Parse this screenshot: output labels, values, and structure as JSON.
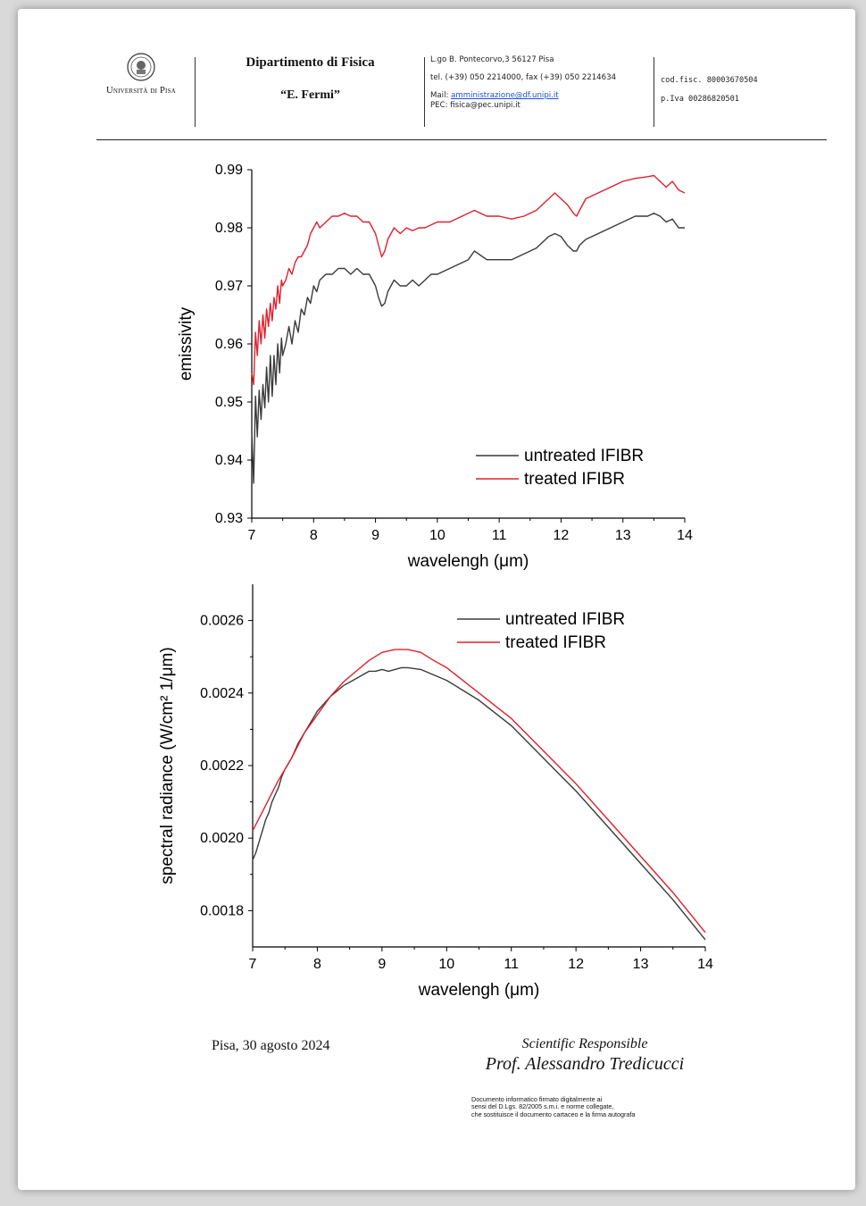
{
  "header": {
    "university_name": "Università di Pisa",
    "department_line1": "Dipartimento di Fisica",
    "department_line2": "“E. Fermi”",
    "address": "L.go B. Pontecorvo,3 56127 Pisa",
    "phone": "tel. (+39) 050 2214000, fax (+39) 050 2214634",
    "mail_label": "Mail:",
    "mail_link": "amministrazione@df.unipi.it",
    "pec": "PEC: fisica@pec.unipi.it",
    "cod_fisc": "cod.fisc. 80003670504",
    "p_iva": "p.Iva 00286820501"
  },
  "chart_data": [
    {
      "type": "line",
      "title": "",
      "xlabel": "wavelengh (μm)",
      "ylabel": "emissivity",
      "xlim": [
        7,
        14
      ],
      "ylim": [
        0.93,
        0.99
      ],
      "xticks": [
        "7",
        "8",
        "9",
        "10",
        "11",
        "12",
        "13",
        "14"
      ],
      "yticks": [
        "0.93",
        "0.94",
        "0.95",
        "0.96",
        "0.97",
        "0.98",
        "0.99"
      ],
      "legend_position": "lower-right",
      "series": [
        {
          "name": "untreated IFIBR",
          "color": "#3a3a3a",
          "x": [
            7.0,
            7.03,
            7.06,
            7.09,
            7.12,
            7.15,
            7.18,
            7.21,
            7.24,
            7.27,
            7.3,
            7.33,
            7.36,
            7.39,
            7.42,
            7.45,
            7.48,
            7.5,
            7.55,
            7.6,
            7.65,
            7.7,
            7.75,
            7.8,
            7.85,
            7.9,
            7.95,
            8.0,
            8.05,
            8.1,
            8.2,
            8.3,
            8.4,
            8.5,
            8.6,
            8.7,
            8.8,
            8.9,
            9.0,
            9.05,
            9.1,
            9.15,
            9.2,
            9.3,
            9.4,
            9.5,
            9.6,
            9.7,
            9.8,
            9.9,
            10.0,
            10.2,
            10.4,
            10.5,
            10.6,
            10.8,
            11.0,
            11.2,
            11.4,
            11.6,
            11.8,
            11.9,
            12.0,
            12.1,
            12.2,
            12.25,
            12.3,
            12.4,
            12.6,
            12.8,
            13.0,
            13.2,
            13.4,
            13.5,
            13.6,
            13.7,
            13.8,
            13.9,
            14.0
          ],
          "values": [
            0.945,
            0.936,
            0.951,
            0.944,
            0.952,
            0.947,
            0.953,
            0.949,
            0.956,
            0.95,
            0.958,
            0.951,
            0.958,
            0.953,
            0.96,
            0.955,
            0.961,
            0.958,
            0.96,
            0.963,
            0.96,
            0.964,
            0.962,
            0.966,
            0.965,
            0.968,
            0.967,
            0.97,
            0.969,
            0.971,
            0.972,
            0.972,
            0.973,
            0.973,
            0.972,
            0.973,
            0.972,
            0.972,
            0.97,
            0.968,
            0.9665,
            0.967,
            0.969,
            0.971,
            0.97,
            0.97,
            0.971,
            0.97,
            0.971,
            0.972,
            0.972,
            0.973,
            0.974,
            0.9745,
            0.976,
            0.9745,
            0.9745,
            0.9745,
            0.9755,
            0.9765,
            0.9785,
            0.979,
            0.9785,
            0.977,
            0.976,
            0.976,
            0.977,
            0.978,
            0.979,
            0.98,
            0.981,
            0.982,
            0.982,
            0.9825,
            0.982,
            0.981,
            0.9815,
            0.98,
            0.98
          ]
        },
        {
          "name": "treated IFIBR",
          "color": "#e0202c",
          "x": [
            7.0,
            7.03,
            7.06,
            7.09,
            7.12,
            7.15,
            7.18,
            7.21,
            7.24,
            7.27,
            7.3,
            7.33,
            7.36,
            7.39,
            7.42,
            7.45,
            7.48,
            7.5,
            7.55,
            7.6,
            7.65,
            7.7,
            7.75,
            7.8,
            7.85,
            7.9,
            7.95,
            8.0,
            8.05,
            8.1,
            8.2,
            8.3,
            8.4,
            8.5,
            8.6,
            8.7,
            8.8,
            8.9,
            9.0,
            9.05,
            9.1,
            9.15,
            9.2,
            9.3,
            9.4,
            9.5,
            9.6,
            9.7,
            9.8,
            9.9,
            10.0,
            10.2,
            10.4,
            10.5,
            10.6,
            10.8,
            11.0,
            11.2,
            11.4,
            11.6,
            11.8,
            11.9,
            12.0,
            12.1,
            12.2,
            12.25,
            12.3,
            12.4,
            12.6,
            12.8,
            13.0,
            13.2,
            13.4,
            13.5,
            13.6,
            13.7,
            13.8,
            13.9,
            14.0
          ],
          "values": [
            0.955,
            0.953,
            0.962,
            0.958,
            0.964,
            0.96,
            0.965,
            0.961,
            0.966,
            0.963,
            0.967,
            0.964,
            0.968,
            0.966,
            0.97,
            0.967,
            0.971,
            0.97,
            0.971,
            0.973,
            0.972,
            0.974,
            0.975,
            0.975,
            0.976,
            0.977,
            0.979,
            0.98,
            0.981,
            0.98,
            0.981,
            0.982,
            0.982,
            0.9825,
            0.982,
            0.982,
            0.981,
            0.981,
            0.979,
            0.977,
            0.975,
            0.976,
            0.978,
            0.98,
            0.979,
            0.98,
            0.9795,
            0.98,
            0.98,
            0.9805,
            0.981,
            0.981,
            0.982,
            0.9825,
            0.983,
            0.982,
            0.982,
            0.9815,
            0.982,
            0.983,
            0.985,
            0.986,
            0.985,
            0.984,
            0.9825,
            0.982,
            0.983,
            0.985,
            0.986,
            0.987,
            0.988,
            0.9885,
            0.9888,
            0.989,
            0.988,
            0.987,
            0.988,
            0.9865,
            0.986
          ]
        }
      ]
    },
    {
      "type": "line",
      "title": "",
      "xlabel": "wavelengh (μm)",
      "ylabel": "spectral radiance (W/cm² 1/μm)",
      "xlim": [
        7,
        14
      ],
      "ylim": [
        0.0017,
        0.0027
      ],
      "xticks": [
        "7",
        "8",
        "9",
        "10",
        "11",
        "12",
        "13",
        "14"
      ],
      "yticks": [
        "0.0018",
        "0.0020",
        "0.0022",
        "0.0024",
        "0.0026"
      ],
      "legend_position": "top-right",
      "series": [
        {
          "name": "untreated IFIBR",
          "color": "#3a3a3a",
          "x": [
            7.0,
            7.05,
            7.1,
            7.15,
            7.2,
            7.25,
            7.3,
            7.35,
            7.4,
            7.45,
            7.5,
            7.6,
            7.7,
            7.8,
            7.9,
            8.0,
            8.2,
            8.4,
            8.6,
            8.8,
            8.9,
            9.0,
            9.1,
            9.2,
            9.3,
            9.4,
            9.6,
            9.8,
            10.0,
            10.5,
            11.0,
            11.5,
            12.0,
            12.5,
            13.0,
            13.5,
            14.0
          ],
          "values": [
            0.00194,
            0.00196,
            0.00199,
            0.00202,
            0.00205,
            0.00207,
            0.0021,
            0.00212,
            0.00214,
            0.00217,
            0.00219,
            0.00222,
            0.00226,
            0.00229,
            0.00232,
            0.00235,
            0.00239,
            0.00242,
            0.00244,
            0.00246,
            0.00246,
            0.002465,
            0.00246,
            0.002465,
            0.00247,
            0.00247,
            0.002465,
            0.00245,
            0.002435,
            0.00238,
            0.00231,
            0.00222,
            0.00213,
            0.00203,
            0.00193,
            0.00183,
            0.00172
          ]
        },
        {
          "name": "treated IFIBR",
          "color": "#e0202c",
          "x": [
            7.0,
            7.2,
            7.4,
            7.6,
            7.8,
            8.0,
            8.2,
            8.4,
            8.6,
            8.8,
            9.0,
            9.2,
            9.4,
            9.6,
            9.8,
            10.0,
            10.5,
            11.0,
            11.5,
            12.0,
            12.5,
            13.0,
            13.5,
            14.0
          ],
          "values": [
            0.00202,
            0.00209,
            0.00216,
            0.00222,
            0.00229,
            0.00234,
            0.00239,
            0.00243,
            0.00246,
            0.00249,
            0.002512,
            0.00252,
            0.00252,
            0.002512,
            0.00249,
            0.00247,
            0.0024,
            0.00233,
            0.00224,
            0.00215,
            0.00205,
            0.00195,
            0.00185,
            0.00174
          ]
        }
      ]
    }
  ],
  "footer": {
    "date": "Pisa, 30 agosto 2024",
    "responsible_title": "Scientific Responsible",
    "responsible_name": "Prof. Alessandro Tredicucci",
    "digital_line1": "Documento informatico firmato digitalmente ai",
    "digital_line2": "sensi del D.Lgs. 82/2005 s.m.i. e norme collegate,",
    "digital_line3": "che sostituisce il documento cartaceo e la firma autografa"
  }
}
